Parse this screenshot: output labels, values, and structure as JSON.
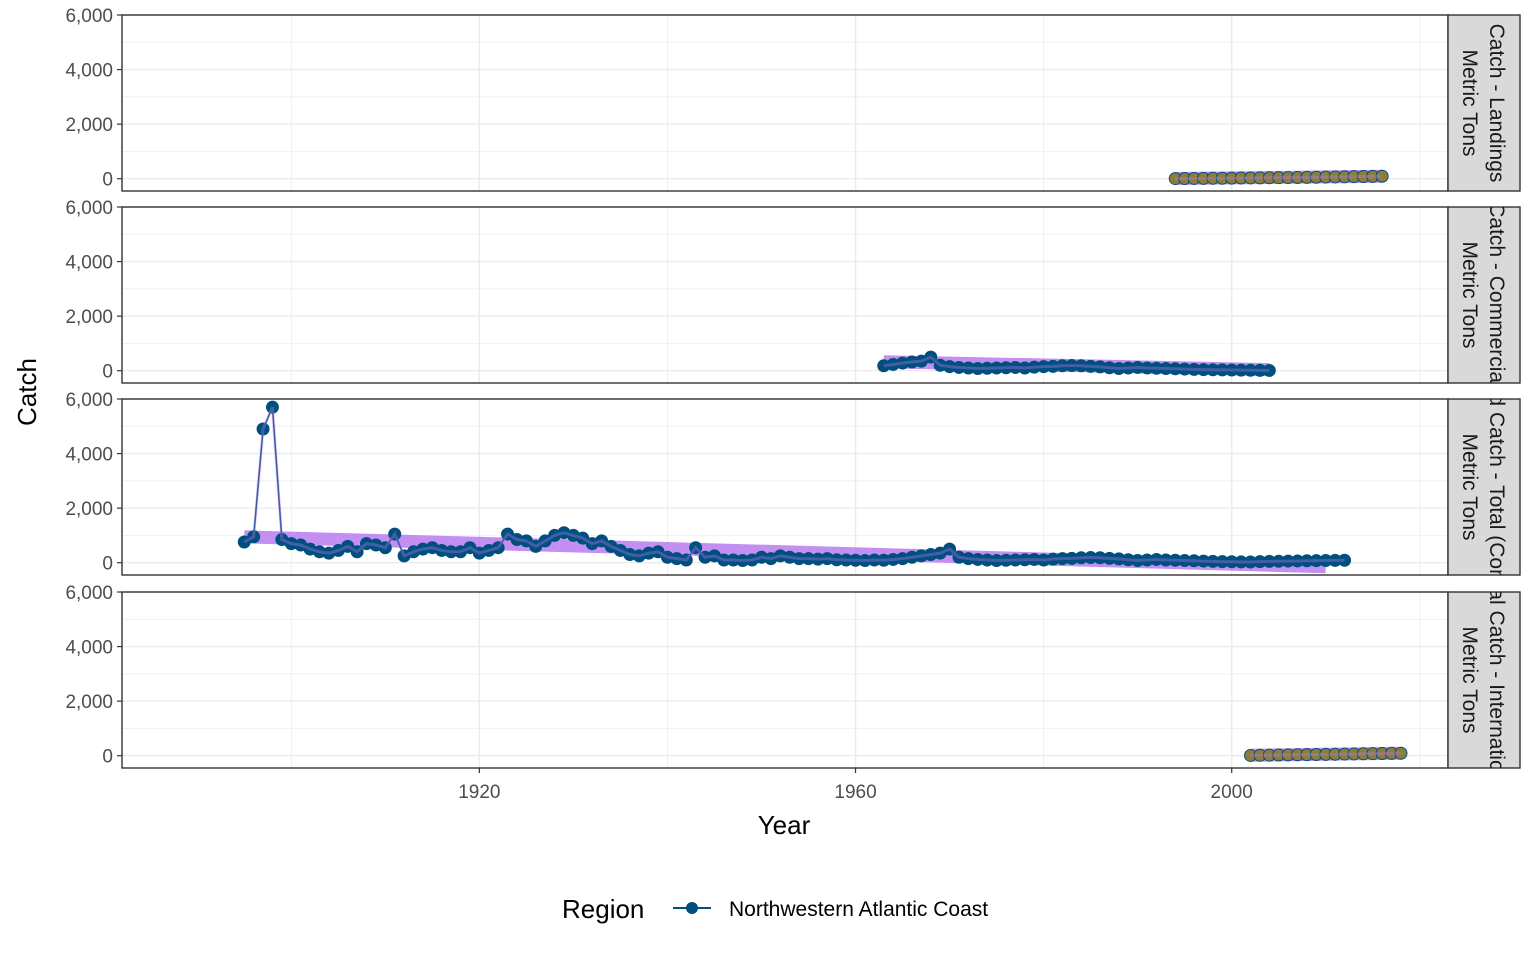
{
  "chart_data": {
    "type": "line",
    "xlabel": "Year",
    "ylabel": "Catch",
    "xlim": [
      1882,
      2023
    ],
    "ylim": [
      -450,
      6000
    ],
    "x_ticks": [
      1920,
      1960,
      2000
    ],
    "x_tick_labels": [
      "1920",
      "1960",
      "2000"
    ],
    "y_ticks": [
      0,
      2000,
      4000,
      6000
    ],
    "y_tick_labels": [
      "0",
      "2,000",
      "4,000",
      "6,000"
    ],
    "grid": true,
    "legend": {
      "title": "Region",
      "position": "bottom",
      "entries": [
        "Northwestern Atlantic Coast"
      ]
    },
    "colors": {
      "series": "#004f7f",
      "trend": "#b97cf0",
      "landings_points": "#8c7d3a",
      "strip_bg": "#d9d9d9",
      "grid": "#ebebeb"
    },
    "panels": [
      {
        "strip_lines": [
          "Catch - Landings",
          "Metric Tons"
        ],
        "series": [
          {
            "name": "Northwestern Atlantic Coast",
            "start_year": 1994,
            "values": [
              5,
              8,
              10,
              12,
              15,
              18,
              22,
              25,
              28,
              32,
              35,
              38,
              42,
              45,
              50,
              55,
              60,
              65,
              70,
              75,
              80,
              85,
              90
            ]
          }
        ],
        "trend": {
          "start_year": 1994,
          "end_year": 2016,
          "start_value": 10,
          "end_value": 90
        }
      },
      {
        "strip_lines": [
          "Catch - Commercial",
          "Metric Tons"
        ],
        "series": [
          {
            "name": "Northwestern Atlantic Coast",
            "start_year": 1963,
            "values": [
              180,
              230,
              280,
              320,
              350,
              500,
              200,
              150,
              120,
              100,
              80,
              90,
              100,
              110,
              120,
              100,
              130,
              150,
              160,
              180,
              190,
              180,
              160,
              140,
              110,
              80,
              100,
              120,
              100,
              90,
              80,
              70,
              60,
              50,
              40,
              35,
              30,
              25,
              20,
              15,
              12,
              10
            ]
          }
        ],
        "trend": {
          "start_year": 1963,
          "end_year": 2004,
          "start_value": 330,
          "end_value": 40
        }
      },
      {
        "strip_lines": [
          "Estimated Catch - Total (Commercial)",
          "Metric Tons"
        ],
        "series": [
          {
            "name": "Northwestern Atlantic Coast",
            "start_year": 1895,
            "values": [
              760,
              950,
              4900,
              5700,
              850,
              700,
              650,
              500,
              400,
              350,
              450,
              600,
              400,
              700,
              650,
              550,
              1050,
              250,
              400,
              500,
              550,
              450,
              400,
              400,
              550,
              350,
              450,
              550,
              1050,
              850,
              800,
              600,
              800,
              1000,
              1100,
              1000,
              900,
              700,
              800,
              600,
              450,
              300,
              250,
              350,
              400,
              200,
              150,
              100,
              550,
              200,
              250,
              100,
              100,
              80,
              100,
              200,
              150,
              250,
              200,
              150,
              150,
              130,
              150,
              110,
              100,
              90,
              80,
              100,
              90,
              120,
              150,
              200,
              250,
              300,
              350,
              500,
              200,
              150,
              120,
              100,
              80,
              90,
              100,
              110,
              120,
              100,
              130,
              150,
              160,
              180,
              190,
              180,
              160,
              140,
              110,
              80,
              100,
              120,
              100,
              90,
              80,
              70,
              60,
              50,
              40,
              35,
              30,
              25,
              40,
              50,
              55,
              60,
              65,
              70,
              75,
              80,
              85,
              90
            ]
          }
        ],
        "trend": {
          "start_year": 1895,
          "end_year": 2010,
          "start_value": 950,
          "end_value": -150
        }
      },
      {
        "strip_lines": [
          "Total Catch - International",
          "Metric Tons"
        ],
        "series": [
          {
            "name": "Northwestern Atlantic Coast",
            "start_year": 2002,
            "values": [
              10,
              15,
              20,
              25,
              30,
              35,
              40,
              45,
              50,
              55,
              60,
              65,
              70,
              75,
              80,
              85,
              90
            ]
          }
        ],
        "trend": {
          "start_year": 2002,
          "end_year": 2018,
          "start_value": 15,
          "end_value": 90
        }
      }
    ]
  }
}
